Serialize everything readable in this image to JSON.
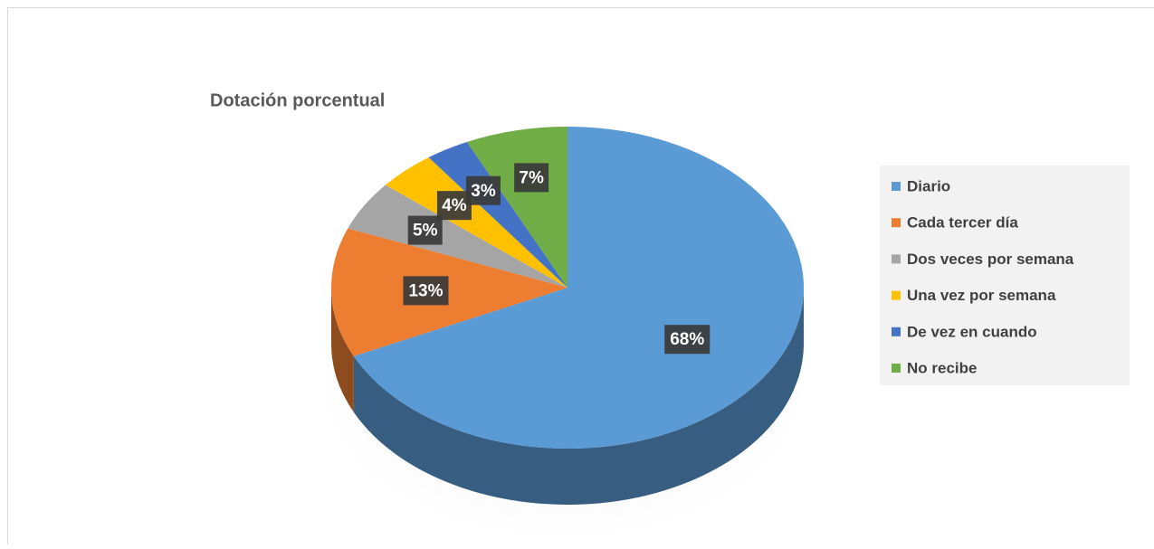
{
  "chart_data": {
    "type": "pie",
    "title": "Dotación porcentual",
    "categories": [
      "Diario",
      "Cada tercer día",
      "Dos veces por semana",
      "Una vez por semana",
      "De vez en cuando",
      "No recibe"
    ],
    "values": [
      68,
      13,
      5,
      4,
      3,
      7
    ],
    "value_labels": [
      "68%",
      "13%",
      "5%",
      "4%",
      "3%",
      "7%"
    ],
    "colors": [
      "#5b9bd5",
      "#ed7d31",
      "#a5a5a5",
      "#ffc000",
      "#4472c4",
      "#70ad47"
    ],
    "legend": "right"
  }
}
